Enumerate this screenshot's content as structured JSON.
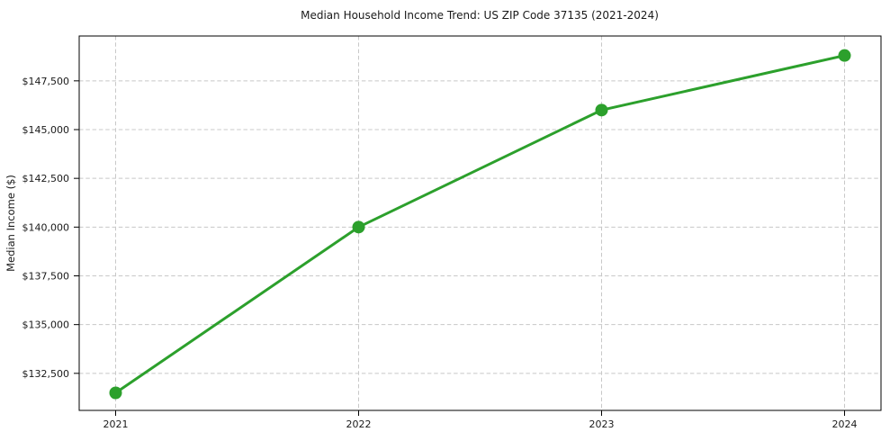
{
  "page": {
    "background": "#ffffff"
  },
  "chart_data": {
    "type": "line",
    "title": "Median Household Income Trend: US ZIP Code 37135 (2021-2024)",
    "xlabel": "",
    "ylabel": "Median Income ($)",
    "x": [
      2021,
      2022,
      2023,
      2024
    ],
    "x_tick_labels": [
      "2021",
      "2022",
      "2023",
      "2024"
    ],
    "values": [
      131500,
      140000,
      146000,
      148800
    ],
    "y_ticks": [
      132500,
      135000,
      137500,
      140000,
      142500,
      145000,
      147500
    ],
    "y_tick_labels": [
      "$132,500",
      "$135,000",
      "$137,500",
      "$140,000",
      "$142,500",
      "$145,000",
      "$147,500"
    ],
    "xlim": [
      2020.85,
      2024.15
    ],
    "ylim": [
      130600,
      149800
    ],
    "grid": true,
    "legend": "none",
    "marker_style": "circle",
    "line_color": "#2ca02c",
    "marker_color": "#2ca02c",
    "grid_color": "#c8c8c8",
    "axis_color": "#000000",
    "text_color": "#1a1a1a"
  }
}
